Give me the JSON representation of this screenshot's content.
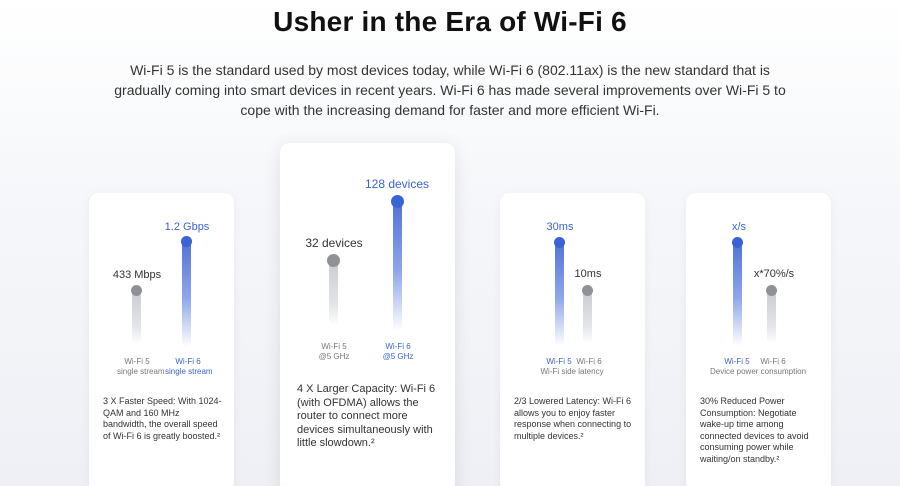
{
  "header": {
    "title": "Usher in the Era of Wi-Fi 6",
    "intro": "Wi-Fi 5 is the standard used by most devices today, while Wi-Fi 6 (802.11ax) is the new standard that is gradually coming into smart devices in recent years. Wi-Fi 6 has made several improvements over Wi-Fi 5 to cope with the increasing demand for faster and more efficient Wi-Fi."
  },
  "cards": {
    "speed": {
      "wifi5_value": "433 Mbps",
      "wifi6_value": "1.2 Gbps",
      "wifi5_label": "Wi-Fi 5",
      "wifi5_sub": "single stream",
      "wifi6_label": "Wi-Fi 6",
      "wifi6_sub": "single stream",
      "desc": "3 X Faster Speed: With 1024-QAM and 160 MHz bandwidth, the overall speed of Wi-Fi 6 is greatly boosted.²"
    },
    "capacity": {
      "wifi5_value": "32 devices",
      "wifi6_value": "128 devices",
      "wifi5_label": "Wi-Fi 5",
      "wifi5_sub": "@5 GHz",
      "wifi6_label": "Wi-Fi 6",
      "wifi6_sub": "@5 GHz",
      "desc": "4 X Larger Capacity: Wi-Fi 6 (with OFDMA) allows the router to connect more devices simultaneously with little slowdown.²"
    },
    "latency": {
      "wifi5_value": "30ms",
      "wifi6_value": "10ms",
      "wifi5_label": "Wi-Fi 5",
      "wifi6_label": "Wi-Fi 6",
      "caption": "Wi-Fi side latency",
      "desc": "2/3 Lowered Latency: Wi-Fi 6 allows you to enjoy faster response when connecting to multiple devices.²"
    },
    "power": {
      "wifi5_value": "x/s",
      "wifi6_value": "x*70%/s",
      "wifi5_label": "Wi-Fi 5",
      "wifi6_label": "Wi-Fi 6",
      "caption": "Device power consumption",
      "desc": "30% Reduced Power Consumption: Negotiate wake-up time among connected devices to avoid consuming power while waiting/on standby.²"
    }
  },
  "colors": {
    "accent_blue": "#3a63d4",
    "neutral_gray": "#8f9196"
  }
}
